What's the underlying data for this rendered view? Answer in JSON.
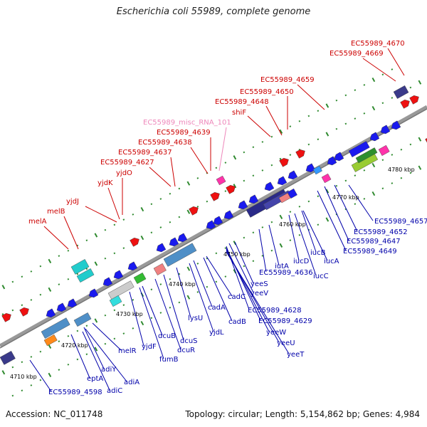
{
  "title": "Escherichia coli 55989, complete genome",
  "footer": {
    "accession": "Accession: NC_011748",
    "summary": "Topology: circular; Length: 5,154,862 bp; Genes: 4,984"
  },
  "colors": {
    "upper_label": "#cc0000",
    "lower_label": "#0000aa",
    "misc_rna_label": "#ee88bb",
    "backbone": "#999999",
    "tick": "#2f8a2f"
  },
  "kbp_labels": [
    "4710 kbp",
    "4720 kbp",
    "4730 kbp",
    "4740 kbp",
    "4750 kbp",
    "4760 kbp",
    "4770 kbp",
    "4780 kbp"
  ],
  "upper_labels": [
    "EC55989_4670",
    "EC55989_4669",
    "EC55989_4659",
    "EC55989_4650",
    "EC55989_4648",
    "shiF",
    "EC55989_misc_RNA_101",
    "EC55989_4639",
    "EC55989_4638",
    "EC55989_4637",
    "EC55989_4627",
    "yjdO",
    "yjdK",
    "yjdJ",
    "melB",
    "melA"
  ],
  "lower_labels": [
    "EC55989_4657",
    "EC55989_4652",
    "EC55989_4647",
    "EC55989_4649",
    "iucB",
    "iucD",
    "iucA",
    "iucC",
    "iutA",
    "EC55989_4636",
    "yeeS",
    "yeeV",
    "EC55989_4628",
    "EC55989_4629",
    "yeeW",
    "yeeU",
    "yeeT",
    "cadC",
    "cadB",
    "cadA",
    "yjdL",
    "lysU",
    "dcuS",
    "dcuR",
    "dcuB",
    "fumB",
    "yjdF",
    "melR",
    "adiY",
    "adiA",
    "adiC",
    "eptA",
    "EC55989_4598"
  ]
}
